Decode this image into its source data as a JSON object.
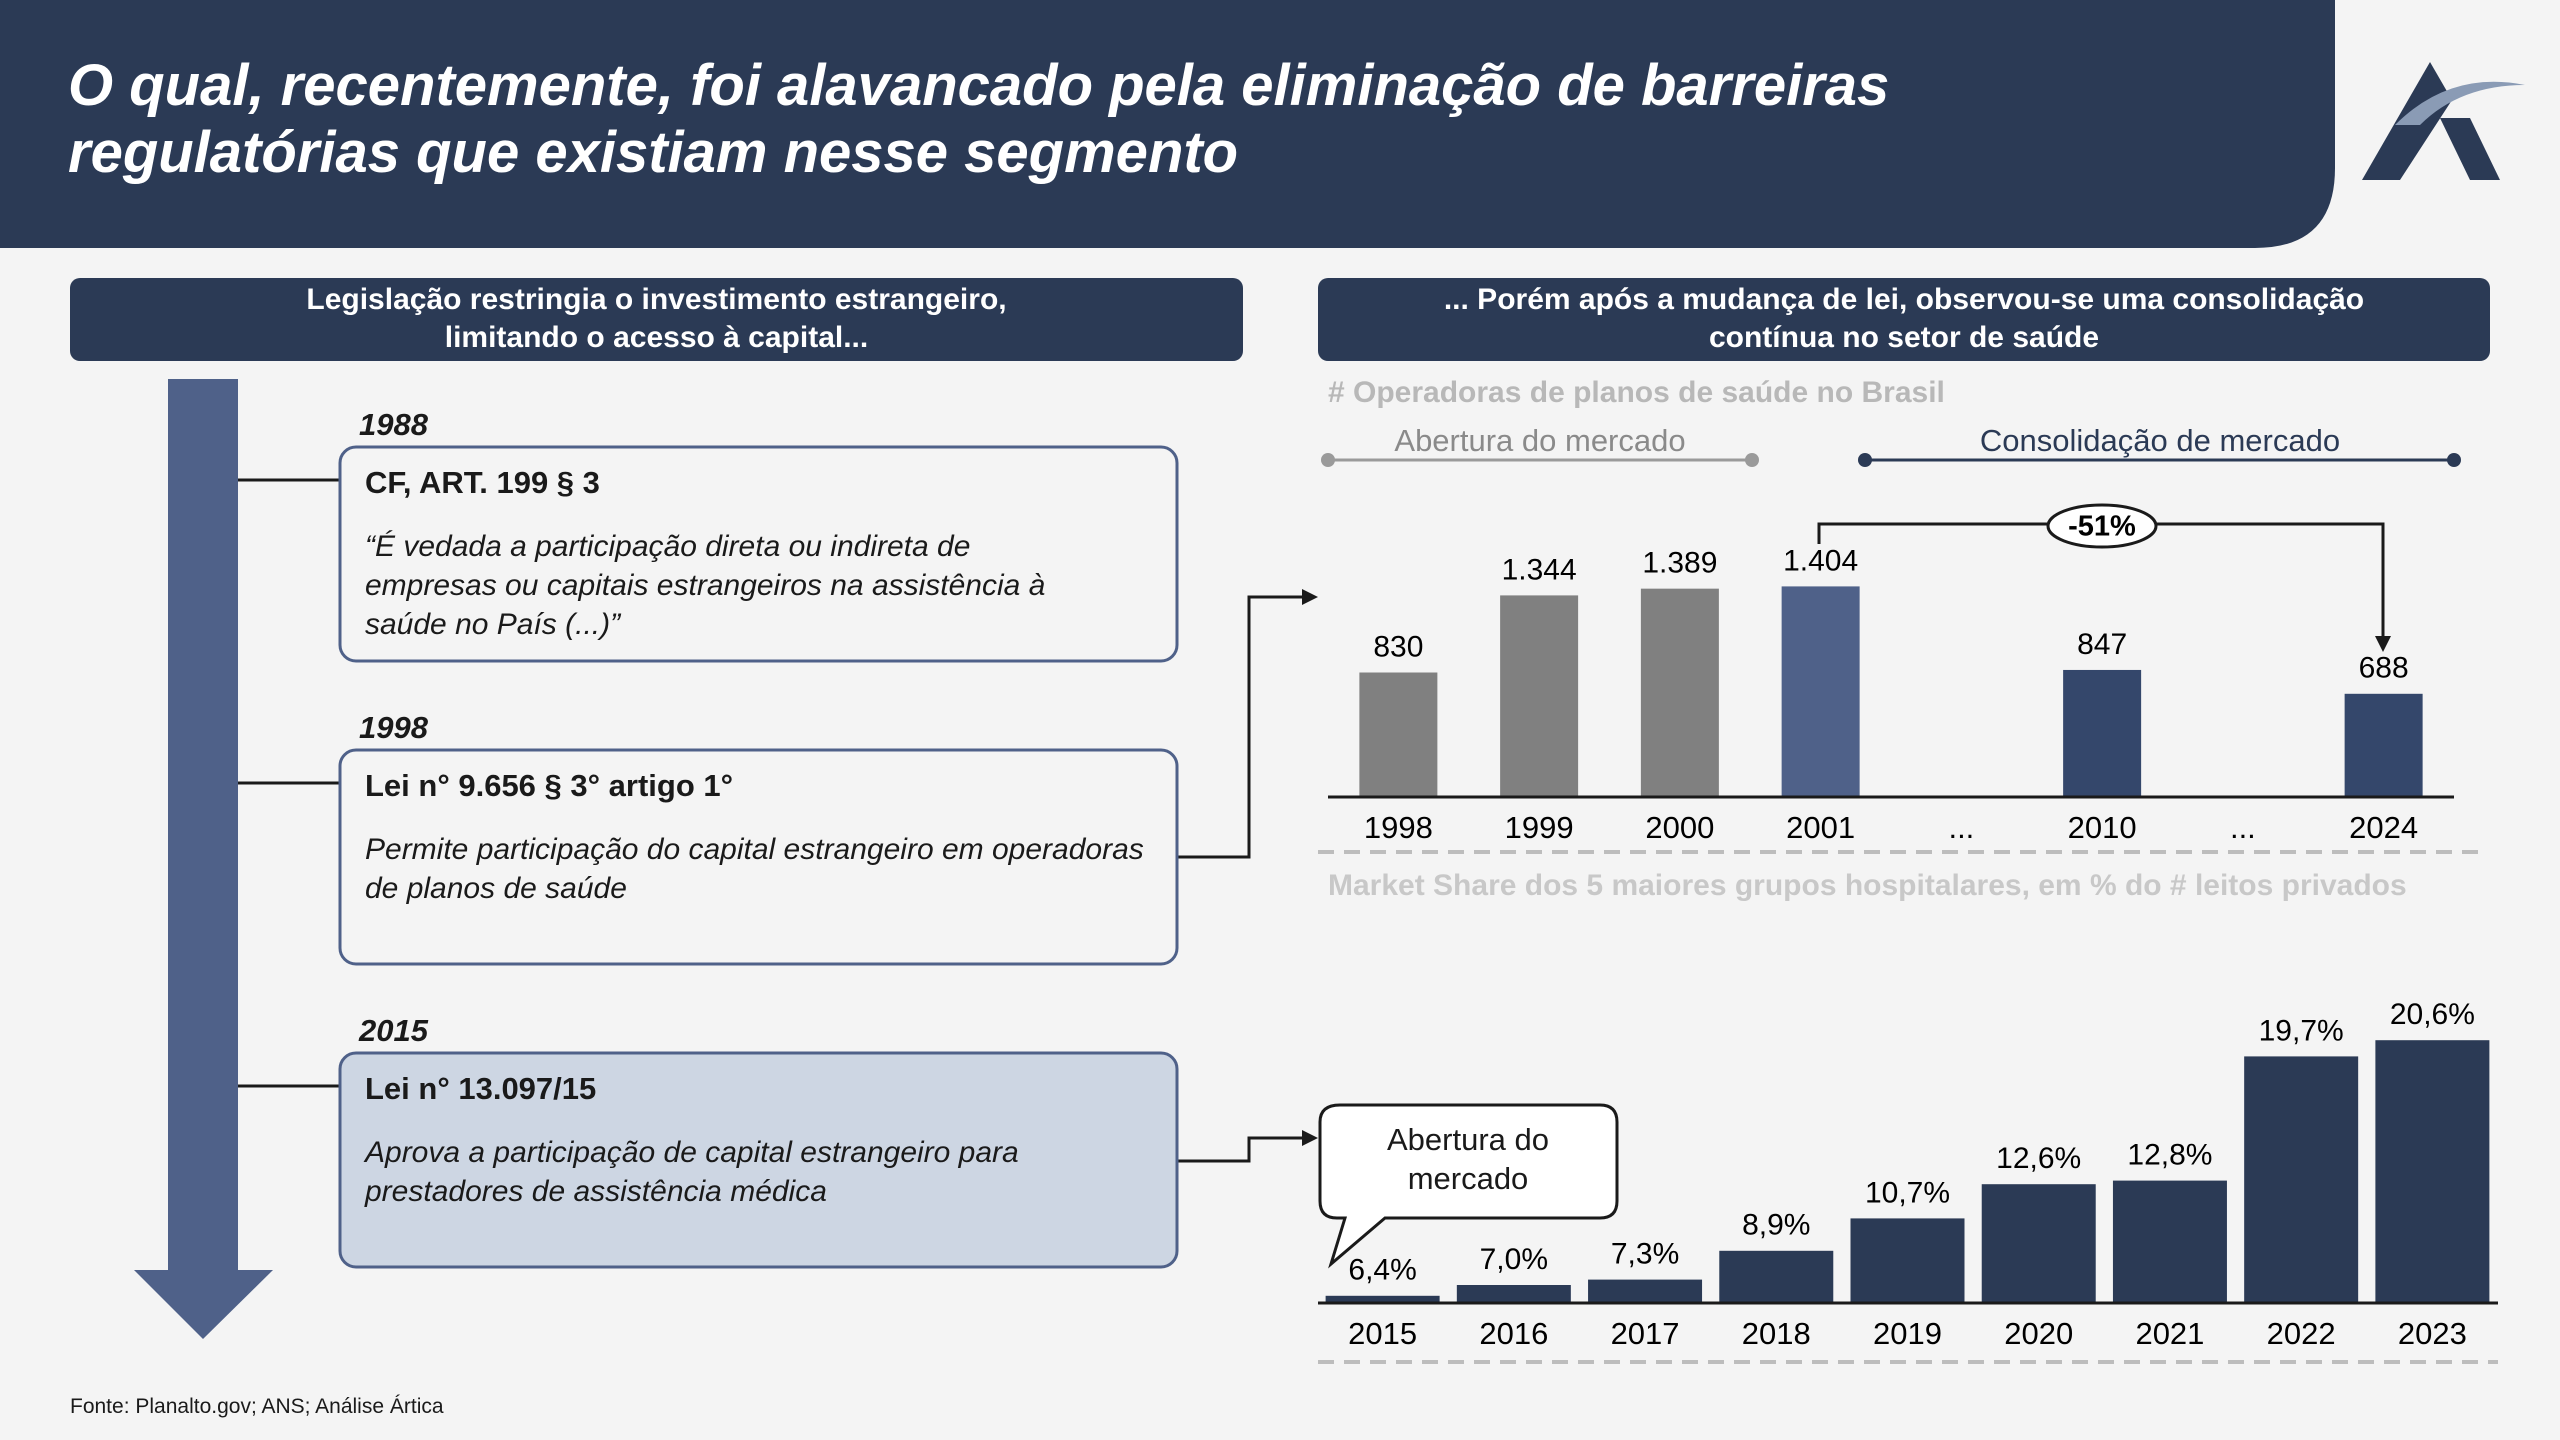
{
  "header": {
    "title_lines": [
      "O qual, recentemente, foi alavancado pela eliminação de barreiras",
      "regulatórias que existiam nesse segmento"
    ]
  },
  "left_panel": {
    "heading_lines": [
      "Legislação restringia o investimento estrangeiro,",
      "limitando o acesso à capital..."
    ],
    "entries": [
      {
        "year": "1988",
        "title": "CF, ART. 199 § 3",
        "text": "“É vedada a participação direta ou indireta de empresas ou capitais estrangeiros na assistência à saúde no País (...)”"
      },
      {
        "year": "1998",
        "title": "Lei n° 9.656 § 3° artigo 1°",
        "text": "Permite participação do capital estrangeiro em operadoras de planos de saúde"
      },
      {
        "year": "2015",
        "title": "Lei n° 13.097/15",
        "text": "Aprova a participação de capital estrangeiro para prestadores de assistência médica"
      }
    ]
  },
  "right_panel": {
    "heading_lines": [
      "... Porém após a mudança de lei, observou-se uma consolidação",
      "contínua no setor de saúde"
    ]
  },
  "source": "Fonte: Planalto.gov; ANS; Análise Ártica",
  "chart_data": [
    {
      "type": "bar",
      "title": "# Operadoras de planos de saúde no Brasil",
      "categories": [
        "1998",
        "1999",
        "2000",
        "2001",
        "...",
        "2010",
        "...",
        "2024"
      ],
      "values": [
        830,
        1344,
        1389,
        1404,
        null,
        847,
        null,
        688
      ],
      "value_labels": [
        "830",
        "1.344",
        "1.389",
        "1.404",
        null,
        "847",
        null,
        "688"
      ],
      "colors": [
        "#808080",
        "#808080",
        "#808080",
        "#4f6189",
        null,
        "#34476b",
        null,
        "#34476b"
      ],
      "ylim": [
        0,
        1600
      ],
      "annotations": [
        "Abertura do mercado",
        "Consolidação de mercado",
        "-51%"
      ]
    },
    {
      "type": "bar",
      "title": "Market Share dos 5 maiores grupos hospitalares, em % do # leitos privados",
      "categories": [
        "2015",
        "2016",
        "2017",
        "2018",
        "2019",
        "2020",
        "2021",
        "2022",
        "2023"
      ],
      "values": [
        6.4,
        7.0,
        7.3,
        8.9,
        10.7,
        12.6,
        12.8,
        19.7,
        20.6
      ],
      "value_labels": [
        "6,4%",
        "7,0%",
        "7,3%",
        "8,9%",
        "10,7%",
        "12,6%",
        "12,8%",
        "19,7%",
        "20,6%"
      ],
      "color": "#2b3a55",
      "ylim": [
        6,
        22
      ],
      "annotation": "Abertura do mercado"
    }
  ]
}
